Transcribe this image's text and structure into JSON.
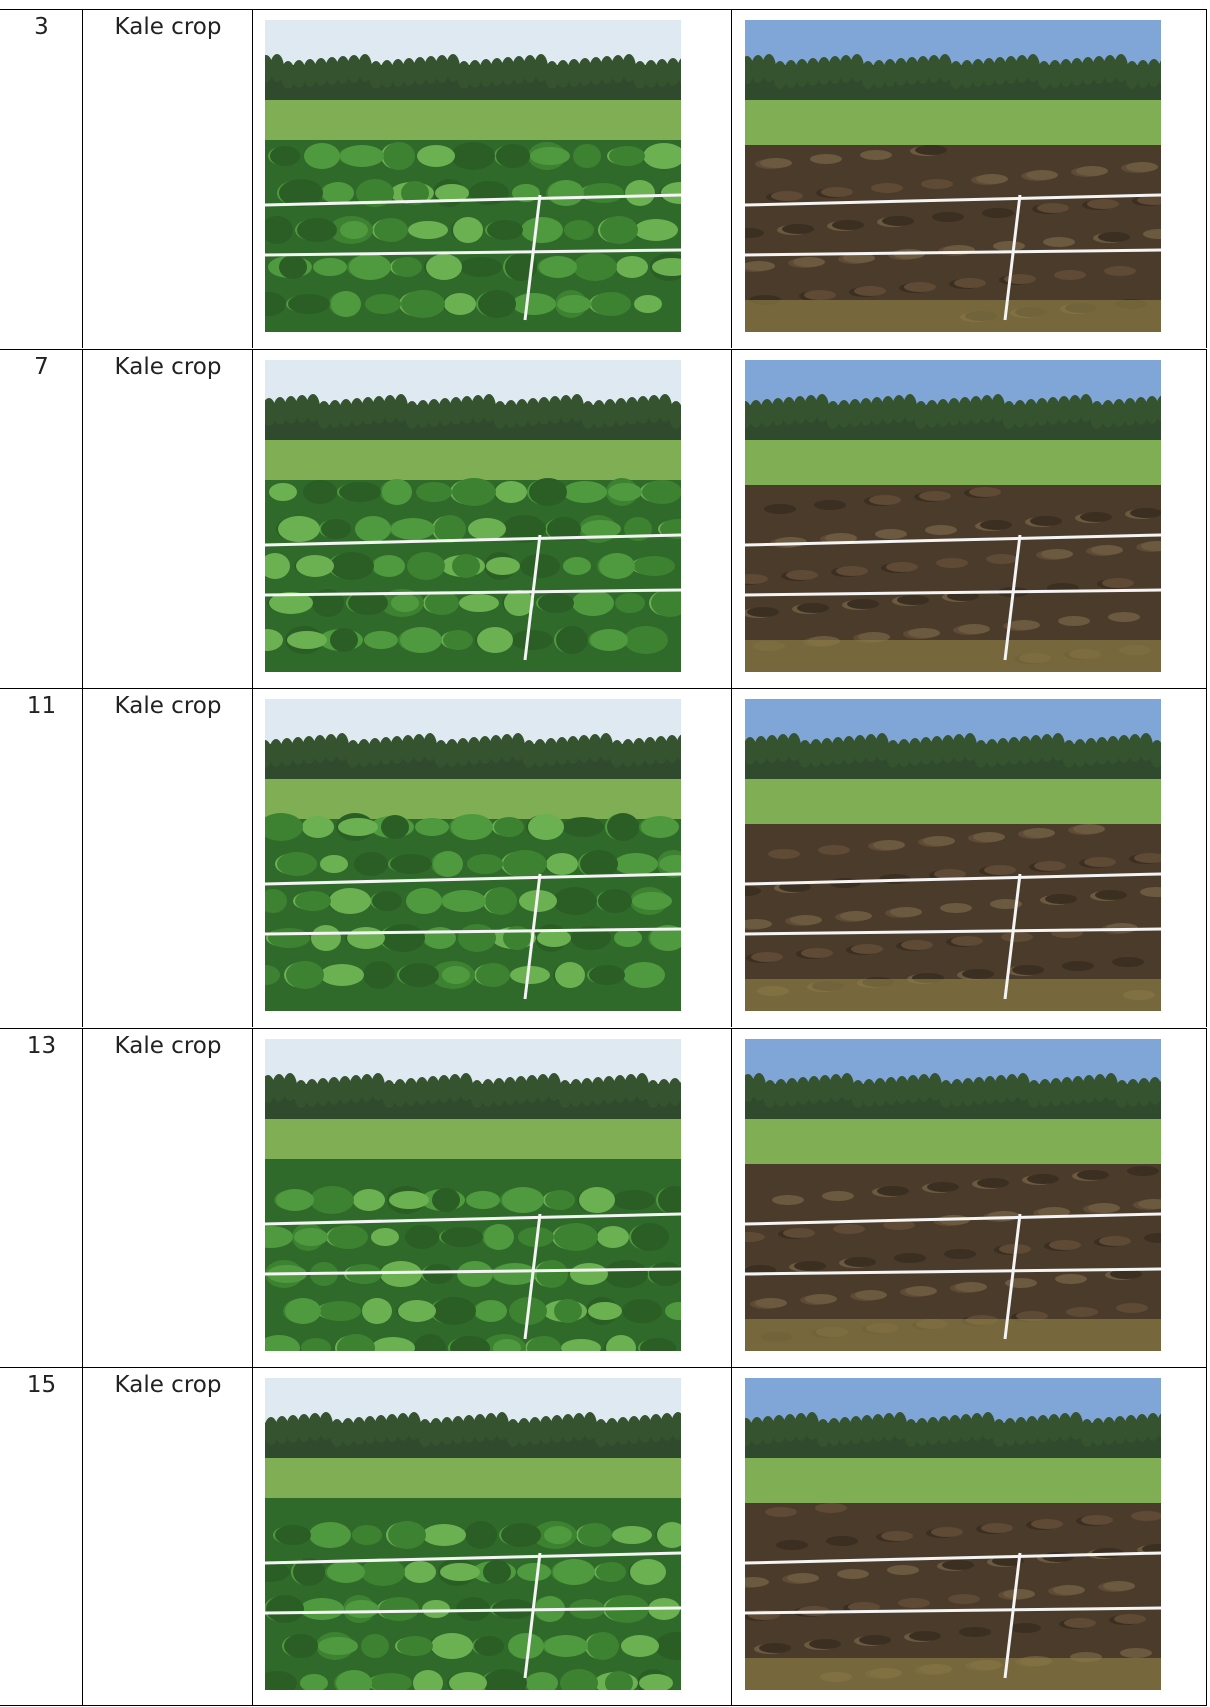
{
  "table": {
    "rows": [
      [
        "3",
        "Kale crop"
      ],
      [
        "7",
        "Kale crop"
      ],
      [
        "11",
        "Kale crop"
      ],
      [
        "13",
        "Kale crop"
      ],
      [
        "15",
        "Kale crop"
      ]
    ]
  }
}
